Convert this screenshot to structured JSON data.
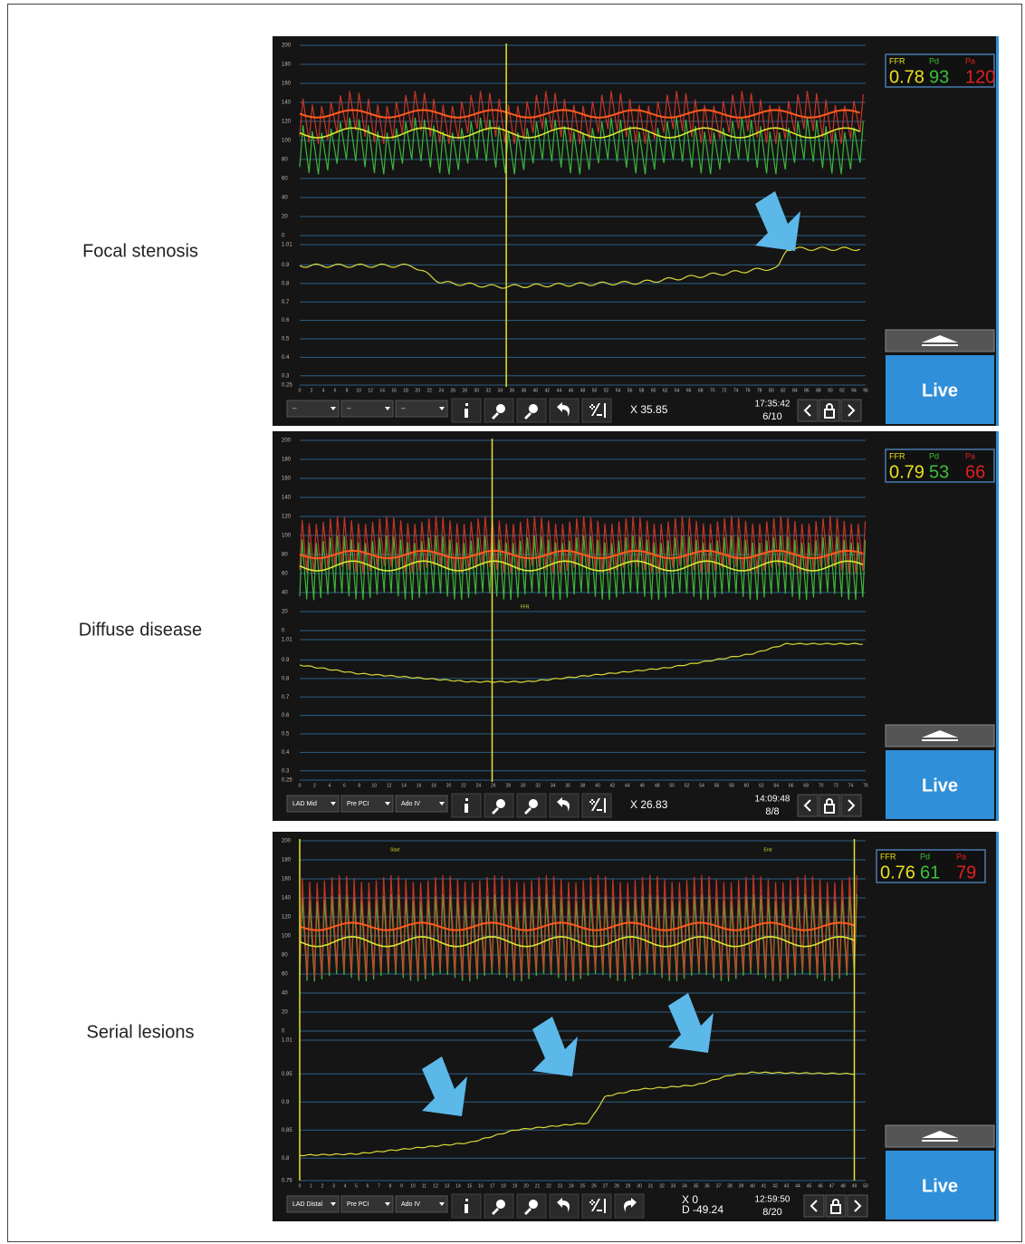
{
  "panels": [
    {
      "label": "Focal stenosis",
      "readout": {
        "labels": [
          "FFR",
          "Pd",
          "Pa"
        ],
        "values": [
          0.78,
          93,
          120
        ]
      },
      "dropdowns": [
        "--",
        "--",
        "--"
      ],
      "cursor": [
        "X 35.85"
      ],
      "time": "17:35:42",
      "page": "6/10",
      "live": "Live",
      "upper": {
        "ylim": [
          0,
          200
        ],
        "yticks": [
          0,
          20,
          40,
          60,
          80,
          100,
          120,
          140,
          160,
          180,
          200
        ]
      },
      "lower": {
        "ylim": [
          0.25,
          1.01
        ],
        "yticks": [
          0.25,
          0.3,
          0.4,
          0.5,
          0.6,
          0.7,
          0.8,
          0.9,
          1.01
        ]
      },
      "xlim": [
        0,
        96
      ],
      "xticks": [
        0,
        2,
        4,
        6,
        8,
        10,
        12,
        14,
        16,
        18,
        20,
        22,
        24,
        26,
        28,
        30,
        32,
        34,
        36,
        38,
        40,
        42,
        44,
        46,
        48,
        50,
        52,
        54,
        56,
        58,
        60,
        62,
        64,
        66,
        68,
        70,
        72,
        74,
        76,
        78,
        80,
        82,
        84,
        86,
        88,
        90,
        92,
        94,
        96
      ],
      "annotations": []
    },
    {
      "label": "Diffuse disease",
      "readout": {
        "labels": [
          "FFR",
          "Pd",
          "Pa"
        ],
        "values": [
          0.79,
          53,
          66
        ]
      },
      "dropdowns": [
        "LAD Mid",
        "Pre PCI",
        "Ado IV"
      ],
      "cursor": [
        "X 26.83"
      ],
      "time": "14:09:48",
      "page": "8/8",
      "live": "Live",
      "upper": {
        "ylim": [
          0,
          200
        ],
        "yticks": [
          0,
          20,
          40,
          60,
          80,
          100,
          120,
          140,
          160,
          180,
          200
        ]
      },
      "lower": {
        "ylim": [
          0.25,
          1.01
        ],
        "yticks": [
          0.25,
          0.3,
          0.4,
          0.5,
          0.6,
          0.7,
          0.8,
          0.9,
          1.01
        ]
      },
      "xlim": [
        0,
        76
      ],
      "xticks": [
        0,
        2,
        4,
        6,
        8,
        10,
        12,
        14,
        16,
        18,
        20,
        22,
        24,
        26,
        28,
        30,
        32,
        34,
        36,
        38,
        40,
        42,
        44,
        46,
        48,
        50,
        52,
        54,
        56,
        58,
        60,
        62,
        64,
        66,
        68,
        70,
        72,
        74,
        76
      ],
      "annotations": [
        "FFR"
      ]
    },
    {
      "label": "Serial lesions",
      "readout": {
        "labels": [
          "FFR",
          "Pd",
          "Pa"
        ],
        "values": [
          0.76,
          61,
          79
        ]
      },
      "dropdowns": [
        "LAD Distal",
        "Pre PCI",
        "Ado IV"
      ],
      "cursor": [
        "X 0",
        "D -49.24"
      ],
      "time": "12:59:50",
      "page": "8/20",
      "live": "Live",
      "upper": {
        "ylim": [
          0,
          200
        ],
        "yticks": [
          0,
          20,
          40,
          60,
          80,
          100,
          120,
          140,
          160,
          180,
          200
        ]
      },
      "lower": {
        "ylim": [
          0.76,
          1.01
        ],
        "yticks": [
          0.76,
          0.8,
          0.85,
          0.9,
          0.95,
          1.01
        ]
      },
      "xlim": [
        0,
        50
      ],
      "xticks": [
        0,
        1,
        2,
        3,
        4,
        5,
        6,
        7,
        8,
        9,
        10,
        11,
        12,
        13,
        14,
        15,
        16,
        17,
        18,
        19,
        20,
        21,
        22,
        23,
        24,
        25,
        26,
        27,
        28,
        29,
        30,
        31,
        32,
        33,
        34,
        35,
        36,
        37,
        38,
        39,
        40,
        41,
        42,
        43,
        44,
        45,
        46,
        47,
        48,
        49,
        50
      ],
      "annotations": [
        "Start",
        "End"
      ]
    }
  ]
}
